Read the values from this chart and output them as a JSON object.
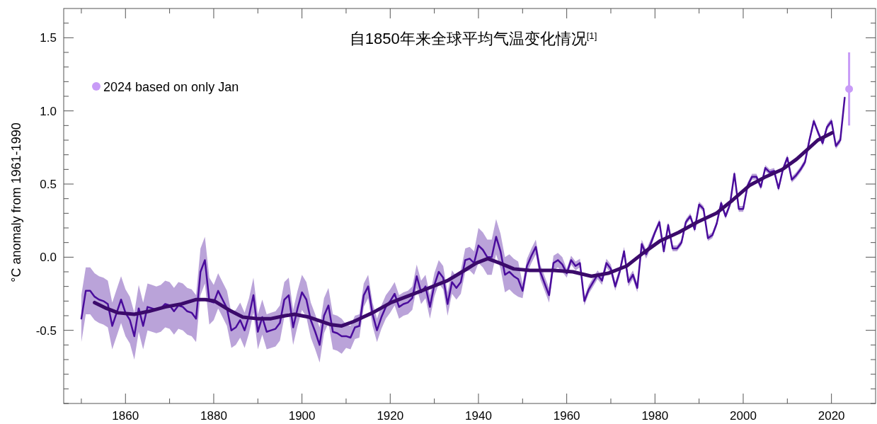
{
  "chart_data": {
    "type": "line",
    "title": "自1850年来全球平均气温变化情况$^{[1]}$",
    "ylabel": "°C anomaly from 1961-1990",
    "xlim": [
      1846,
      2030
    ],
    "ylim": [
      -1.0,
      1.7
    ],
    "xticks": [
      {
        "value": 1850,
        "label": null
      },
      1860,
      {
        "value": 1870,
        "label": null
      },
      1880,
      {
        "value": 1890,
        "label": null
      },
      1900,
      {
        "value": 1910,
        "label": null
      },
      1920,
      {
        "value": 1930,
        "label": null
      },
      1940,
      {
        "value": 1950,
        "label": null
      },
      1960,
      {
        "value": 1970,
        "label": null
      },
      1980,
      {
        "value": 1990,
        "label": null
      },
      2000,
      {
        "value": 2010,
        "label": null
      },
      2020
    ],
    "yticks": [
      {
        "value": -1.0,
        "label": null
      },
      {
        "value": -0.9,
        "label": null
      },
      {
        "value": -0.8,
        "label": null
      },
      {
        "value": -0.7,
        "label": null
      },
      {
        "value": -0.6,
        "label": null
      },
      {
        "value": -0.5,
        "label": "-0.5"
      },
      {
        "value": -0.4,
        "label": null
      },
      {
        "value": -0.3,
        "label": null
      },
      {
        "value": -0.2,
        "label": null
      },
      {
        "value": -0.1,
        "label": null
      },
      {
        "value": 0,
        "label": "0.0"
      },
      {
        "value": 0.1,
        "label": null
      },
      {
        "value": 0.2,
        "label": null
      },
      {
        "value": 0.3,
        "label": null
      },
      {
        "value": 0.4,
        "label": null
      },
      {
        "value": 0.5,
        "label": "0.5"
      },
      {
        "value": 0.6,
        "label": null
      },
      {
        "value": 0.7,
        "label": null
      },
      {
        "value": 0.8,
        "label": null
      },
      {
        "value": 0.9,
        "label": null
      },
      {
        "value": 1.0,
        "label": "1.0"
      },
      {
        "value": 1.1,
        "label": null
      },
      {
        "value": 1.2,
        "label": null
      },
      {
        "value": 1.3,
        "label": null
      },
      {
        "value": 1.4,
        "label": null
      },
      {
        "value": 1.5,
        "label": "1.5"
      },
      {
        "value": 1.6,
        "label": null
      }
    ],
    "legend": "top left",
    "line_style": "solid",
    "series": [
      {
        "color": "#4a0c9c",
        "x": [
          1850,
          1851,
          1852,
          1853,
          1854,
          1855,
          1856,
          1857,
          1858,
          1859,
          1860,
          1861,
          1862,
          1863,
          1864,
          1865,
          1866,
          1867,
          1868,
          1869,
          1870,
          1871,
          1872,
          1873,
          1874,
          1875,
          1876,
          1877,
          1878,
          1879,
          1880,
          1881,
          1882,
          1883,
          1884,
          1885,
          1886,
          1887,
          1888,
          1889,
          1890,
          1891,
          1892,
          1893,
          1894,
          1895,
          1896,
          1897,
          1898,
          1899,
          1900,
          1901,
          1902,
          1903,
          1904,
          1905,
          1906,
          1907,
          1908,
          1909,
          1910,
          1911,
          1912,
          1913,
          1914,
          1915,
          1916,
          1917,
          1918,
          1919,
          1920,
          1921,
          1922,
          1923,
          1924,
          1925,
          1926,
          1927,
          1928,
          1929,
          1930,
          1931,
          1932,
          1933,
          1934,
          1935,
          1936,
          1937,
          1938,
          1939,
          1940,
          1941,
          1942,
          1943,
          1944,
          1945,
          1946,
          1947,
          1948,
          1949,
          1950,
          1951,
          1952,
          1953,
          1954,
          1955,
          1956,
          1957,
          1958,
          1959,
          1960,
          1961,
          1962,
          1963,
          1964,
          1965,
          1966,
          1967,
          1968,
          1969,
          1970,
          1971,
          1972,
          1973,
          1974,
          1975,
          1976,
          1977,
          1978,
          1979,
          1980,
          1981,
          1982,
          1983,
          1984,
          1985,
          1986,
          1987,
          1988,
          1989,
          1990,
          1991,
          1992,
          1993,
          1994,
          1995,
          1996,
          1997,
          1998,
          1999,
          2000,
          2001,
          2002,
          2003,
          2004,
          2005,
          2006,
          2007,
          2008,
          2009,
          2010,
          2011,
          2012,
          2013,
          2014,
          2015,
          2016,
          2017,
          2018,
          2019,
          2020,
          2021,
          2022,
          2023
        ],
        "values": [
          -0.42,
          -0.23,
          -0.23,
          -0.27,
          -0.29,
          -0.3,
          -0.32,
          -0.47,
          -0.38,
          -0.29,
          -0.38,
          -0.43,
          -0.54,
          -0.35,
          -0.47,
          -0.34,
          -0.35,
          -0.36,
          -0.35,
          -0.32,
          -0.33,
          -0.37,
          -0.33,
          -0.34,
          -0.37,
          -0.38,
          -0.42,
          -0.1,
          -0.02,
          -0.3,
          -0.31,
          -0.23,
          -0.29,
          -0.35,
          -0.5,
          -0.48,
          -0.43,
          -0.5,
          -0.4,
          -0.26,
          -0.51,
          -0.41,
          -0.51,
          -0.5,
          -0.49,
          -0.45,
          -0.29,
          -0.26,
          -0.48,
          -0.35,
          -0.24,
          -0.29,
          -0.43,
          -0.51,
          -0.6,
          -0.4,
          -0.33,
          -0.51,
          -0.52,
          -0.54,
          -0.54,
          -0.55,
          -0.48,
          -0.47,
          -0.26,
          -0.2,
          -0.39,
          -0.5,
          -0.41,
          -0.34,
          -0.3,
          -0.25,
          -0.34,
          -0.32,
          -0.31,
          -0.28,
          -0.13,
          -0.24,
          -0.2,
          -0.34,
          -0.19,
          -0.1,
          -0.14,
          -0.32,
          -0.17,
          -0.21,
          -0.17,
          -0.02,
          -0.01,
          -0.04,
          0.08,
          0.05,
          0.0,
          0.0,
          0.14,
          0.04,
          -0.12,
          -0.1,
          -0.13,
          -0.15,
          -0.23,
          -0.06,
          0.01,
          0.07,
          -0.1,
          -0.18,
          -0.26,
          -0.04,
          -0.02,
          -0.05,
          -0.11,
          -0.02,
          -0.06,
          -0.04,
          -0.3,
          -0.22,
          -0.17,
          -0.12,
          -0.16,
          -0.04,
          -0.08,
          -0.2,
          -0.1,
          0.04,
          -0.17,
          -0.12,
          -0.21,
          0.09,
          0.02,
          0.09,
          0.17,
          0.24,
          0.04,
          0.22,
          0.06,
          0.06,
          0.1,
          0.24,
          0.28,
          0.19,
          0.36,
          0.33,
          0.13,
          0.15,
          0.23,
          0.37,
          0.28,
          0.36,
          0.57,
          0.33,
          0.33,
          0.49,
          0.55,
          0.55,
          0.48,
          0.61,
          0.58,
          0.59,
          0.47,
          0.6,
          0.68,
          0.53,
          0.56,
          0.6,
          0.65,
          0.8,
          0.93,
          0.85,
          0.78,
          0.89,
          0.93,
          0.76,
          0.8,
          1.09
        ],
        "lower": [
          -0.58,
          -0.39,
          -0.39,
          -0.43,
          -0.45,
          -0.46,
          -0.48,
          -0.63,
          -0.54,
          -0.45,
          -0.54,
          -0.59,
          -0.7,
          -0.51,
          -0.63,
          -0.5,
          -0.51,
          -0.52,
          -0.51,
          -0.48,
          -0.49,
          -0.53,
          -0.49,
          -0.5,
          -0.53,
          -0.54,
          -0.58,
          -0.26,
          -0.18,
          -0.46,
          -0.43,
          -0.35,
          -0.41,
          -0.47,
          -0.62,
          -0.6,
          -0.55,
          -0.62,
          -0.52,
          -0.38,
          -0.63,
          -0.53,
          -0.63,
          -0.62,
          -0.61,
          -0.57,
          -0.41,
          -0.38,
          -0.6,
          -0.47,
          -0.36,
          -0.41,
          -0.55,
          -0.63,
          -0.72,
          -0.52,
          -0.45,
          -0.63,
          -0.64,
          -0.66,
          -0.62,
          -0.63,
          -0.56,
          -0.55,
          -0.34,
          -0.28,
          -0.47,
          -0.58,
          -0.49,
          -0.42,
          -0.38,
          -0.33,
          -0.42,
          -0.4,
          -0.39,
          -0.36,
          -0.21,
          -0.32,
          -0.28,
          -0.42,
          -0.27,
          -0.18,
          -0.22,
          -0.4,
          -0.25,
          -0.29,
          -0.25,
          -0.1,
          -0.09,
          -0.12,
          -0.04,
          -0.07,
          -0.12,
          -0.12,
          0.02,
          -0.08,
          -0.24,
          -0.22,
          -0.25,
          -0.27,
          -0.28,
          -0.11,
          -0.04,
          0.02,
          -0.15,
          -0.23,
          -0.31,
          -0.09,
          -0.07,
          -0.1,
          -0.14,
          -0.05,
          -0.09,
          -0.07,
          -0.33,
          -0.25,
          -0.2,
          -0.15,
          -0.19,
          -0.07,
          -0.11,
          -0.23,
          -0.13,
          0.01,
          -0.2,
          -0.15,
          -0.24,
          0.06,
          -0.01,
          0.06,
          0.15,
          0.22,
          0.02,
          0.2,
          0.04,
          0.04,
          0.08,
          0.22,
          0.26,
          0.17,
          0.34,
          0.31,
          0.11,
          0.13,
          0.21,
          0.35,
          0.26,
          0.34,
          0.55,
          0.31,
          0.31,
          0.47,
          0.53,
          0.53,
          0.46,
          0.59,
          0.56,
          0.57,
          0.45,
          0.58,
          0.66,
          0.51,
          0.54,
          0.58,
          0.63,
          0.78,
          0.91,
          0.83,
          0.76,
          0.87,
          0.91,
          0.74,
          0.78,
          1.09
        ],
        "upper": [
          -0.26,
          -0.07,
          -0.07,
          -0.11,
          -0.13,
          -0.14,
          -0.16,
          -0.31,
          -0.22,
          -0.13,
          -0.22,
          -0.27,
          -0.38,
          -0.19,
          -0.31,
          -0.18,
          -0.19,
          -0.2,
          -0.19,
          -0.16,
          -0.17,
          -0.21,
          -0.17,
          -0.18,
          -0.21,
          -0.22,
          -0.26,
          0.06,
          0.14,
          -0.14,
          -0.19,
          -0.11,
          -0.17,
          -0.23,
          -0.38,
          -0.36,
          -0.31,
          -0.38,
          -0.28,
          -0.14,
          -0.39,
          -0.29,
          -0.39,
          -0.38,
          -0.37,
          -0.33,
          -0.17,
          -0.14,
          -0.36,
          -0.23,
          -0.12,
          -0.17,
          -0.31,
          -0.39,
          -0.48,
          -0.28,
          -0.21,
          -0.39,
          -0.4,
          -0.42,
          -0.46,
          -0.47,
          -0.4,
          -0.39,
          -0.18,
          -0.12,
          -0.31,
          -0.42,
          -0.33,
          -0.26,
          -0.22,
          -0.17,
          -0.26,
          -0.24,
          -0.23,
          -0.2,
          -0.05,
          -0.16,
          -0.12,
          -0.26,
          -0.11,
          -0.02,
          -0.06,
          -0.24,
          -0.09,
          -0.13,
          -0.09,
          0.06,
          0.07,
          0.04,
          0.2,
          0.17,
          0.12,
          0.12,
          0.26,
          0.16,
          0.0,
          0.02,
          -0.01,
          -0.03,
          -0.18,
          -0.01,
          0.06,
          0.12,
          -0.05,
          -0.13,
          -0.21,
          0.01,
          0.03,
          0.0,
          -0.08,
          0.01,
          -0.03,
          -0.01,
          -0.27,
          -0.19,
          -0.14,
          -0.09,
          -0.13,
          -0.01,
          -0.05,
          -0.17,
          -0.07,
          0.07,
          -0.14,
          -0.09,
          -0.18,
          0.12,
          0.05,
          0.12,
          0.19,
          0.26,
          0.06,
          0.24,
          0.08,
          0.08,
          0.12,
          0.26,
          0.3,
          0.21,
          0.38,
          0.35,
          0.15,
          0.17,
          0.25,
          0.39,
          0.3,
          0.38,
          0.59,
          0.35,
          0.35,
          0.51,
          0.57,
          0.57,
          0.5,
          0.63,
          0.6,
          0.61,
          0.49,
          0.62,
          0.7,
          0.55,
          0.58,
          0.62,
          0.67,
          0.82,
          0.95,
          0.87,
          0.8,
          0.91,
          0.95,
          0.78,
          0.82,
          1.09
        ]
      },
      {
        "color": "#3b0a6b",
        "x": [
          1853,
          1855.7,
          1858.3,
          1862,
          1865.3,
          1869,
          1872.7,
          1875.9,
          1878.1,
          1880.2,
          1883.4,
          1886.6,
          1889.8,
          1893,
          1896.2,
          1898.3,
          1901.6,
          1906.4,
          1909,
          1911.7,
          1916,
          1920.2,
          1924.5,
          1928.8,
          1933,
          1936.3,
          1939.5,
          1942.1,
          1944.8,
          1948,
          1951.7,
          1957.1,
          1961.4,
          1965.6,
          1969.4,
          1973.6,
          1977.4,
          1981.1,
          1985.4,
          1989.6,
          1993.9,
          1997.6,
          2001.4,
          2005.1,
          2008.9,
          2012.1,
          2014.7,
          2016.9,
          2020.1
        ],
        "values": [
          -0.31,
          -0.35,
          -0.38,
          -0.39,
          -0.37,
          -0.34,
          -0.32,
          -0.29,
          -0.29,
          -0.3,
          -0.36,
          -0.41,
          -0.42,
          -0.42,
          -0.4,
          -0.39,
          -0.41,
          -0.46,
          -0.47,
          -0.44,
          -0.38,
          -0.31,
          -0.26,
          -0.21,
          -0.16,
          -0.1,
          -0.04,
          -0.01,
          -0.04,
          -0.08,
          -0.09,
          -0.09,
          -0.1,
          -0.13,
          -0.11,
          -0.06,
          0.03,
          0.11,
          0.17,
          0.24,
          0.3,
          0.39,
          0.49,
          0.55,
          0.6,
          0.67,
          0.74,
          0.8,
          0.85
        ]
      },
      {
        "type": "scatter",
        "name": "2024 based on only Jan",
        "color": "#c89bf7",
        "marker": "circle",
        "x": [
          2024
        ],
        "values": [
          1.15
        ],
        "errors": [
          0.25
        ]
      }
    ]
  }
}
